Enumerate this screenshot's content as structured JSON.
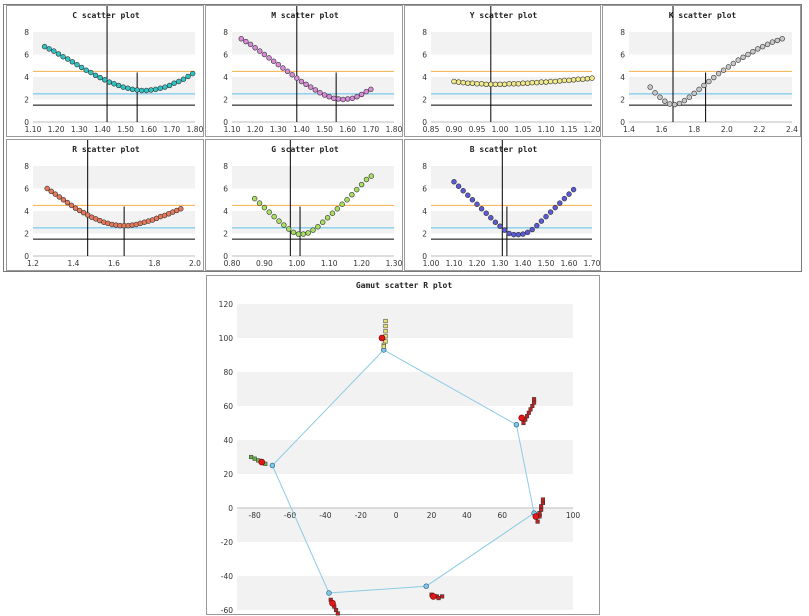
{
  "colors": {
    "orange_line": "#f5b14a",
    "blue_line": "#5bc0ea",
    "black_line": "#000000",
    "band": "#f2f2f2",
    "hull": "#8ecbe6"
  },
  "chart_data": [
    {
      "id": "c",
      "type": "scatter",
      "title": "C scatter plot",
      "xticks": [
        "1.10",
        "1.20",
        "1.30",
        "1.40",
        "1.50",
        "1.60",
        "1.70",
        "1.80"
      ],
      "xlim": [
        1.1,
        1.8
      ],
      "ylim": [
        0,
        8
      ],
      "yticks": [
        "0",
        "2",
        "4",
        "6",
        "8"
      ],
      "hlines": [
        4.5,
        2.5,
        1.5
      ],
      "vlines": [
        1.42,
        1.55
      ],
      "marker": "#2ec4c4",
      "x": [
        1.15,
        1.17,
        1.19,
        1.21,
        1.23,
        1.25,
        1.27,
        1.29,
        1.31,
        1.33,
        1.35,
        1.37,
        1.39,
        1.41,
        1.43,
        1.45,
        1.47,
        1.49,
        1.51,
        1.53,
        1.55,
        1.57,
        1.59,
        1.61,
        1.63,
        1.65,
        1.67,
        1.69,
        1.71,
        1.73,
        1.75,
        1.77,
        1.79
      ],
      "y": [
        6.7,
        6.5,
        6.3,
        6.05,
        5.8,
        5.6,
        5.35,
        5.1,
        4.85,
        4.6,
        4.4,
        4.15,
        3.95,
        3.75,
        3.55,
        3.4,
        3.25,
        3.1,
        3.0,
        2.9,
        2.85,
        2.8,
        2.8,
        2.85,
        2.9,
        3.0,
        3.1,
        3.25,
        3.45,
        3.6,
        3.8,
        4.05,
        4.3
      ]
    },
    {
      "id": "m",
      "type": "scatter",
      "title": "M scatter plot",
      "xticks": [
        "1.10",
        "1.20",
        "1.30",
        "1.40",
        "1.50",
        "1.60",
        "1.70",
        "1.80"
      ],
      "xlim": [
        1.1,
        1.8
      ],
      "ylim": [
        0,
        8
      ],
      "yticks": [
        "0",
        "2",
        "4",
        "6",
        "8"
      ],
      "hlines": [
        4.5,
        2.5,
        1.5
      ],
      "vlines": [
        1.38,
        1.55
      ],
      "marker": "#d98ad9",
      "x": [
        1.14,
        1.16,
        1.18,
        1.2,
        1.22,
        1.24,
        1.26,
        1.28,
        1.3,
        1.32,
        1.34,
        1.36,
        1.38,
        1.4,
        1.42,
        1.44,
        1.46,
        1.48,
        1.5,
        1.52,
        1.54,
        1.56,
        1.58,
        1.6,
        1.62,
        1.64,
        1.66,
        1.68,
        1.7
      ],
      "y": [
        7.4,
        7.15,
        6.9,
        6.6,
        6.3,
        6.0,
        5.7,
        5.4,
        5.1,
        4.8,
        4.5,
        4.2,
        3.9,
        3.6,
        3.35,
        3.1,
        2.85,
        2.6,
        2.4,
        2.25,
        2.1,
        2.05,
        2.0,
        2.05,
        2.1,
        2.25,
        2.45,
        2.7,
        2.9
      ]
    },
    {
      "id": "y",
      "type": "scatter",
      "title": "Y scatter plot",
      "xticks": [
        "0.85",
        "0.90",
        "0.95",
        "1.00",
        "1.05",
        "1.10",
        "1.15",
        "1.20"
      ],
      "xlim": [
        0.85,
        1.2
      ],
      "ylim": [
        0,
        8
      ],
      "yticks": [
        "0",
        "2",
        "4",
        "6",
        "8"
      ],
      "hlines": [
        4.5,
        2.5,
        1.5
      ],
      "vlines": [
        0.98
      ],
      "marker": "#f0ea8c",
      "x": [
        0.9,
        0.91,
        0.92,
        0.93,
        0.94,
        0.95,
        0.96,
        0.97,
        0.98,
        0.99,
        1.0,
        1.01,
        1.02,
        1.03,
        1.04,
        1.05,
        1.06,
        1.07,
        1.08,
        1.09,
        1.1,
        1.11,
        1.12,
        1.13,
        1.14,
        1.15,
        1.16,
        1.17,
        1.18,
        1.19,
        1.2
      ],
      "y": [
        3.6,
        3.55,
        3.5,
        3.45,
        3.45,
        3.4,
        3.4,
        3.35,
        3.35,
        3.35,
        3.35,
        3.35,
        3.4,
        3.4,
        3.4,
        3.45,
        3.45,
        3.5,
        3.5,
        3.55,
        3.55,
        3.6,
        3.6,
        3.65,
        3.7,
        3.7,
        3.75,
        3.8,
        3.8,
        3.85,
        3.9
      ]
    },
    {
      "id": "k",
      "type": "scatter",
      "title": "K scatter plot",
      "xticks": [
        "1.4",
        "1.6",
        "1.8",
        "2.0",
        "2.2",
        "2.4"
      ],
      "xlim": [
        1.4,
        2.4
      ],
      "ylim": [
        0,
        8
      ],
      "yticks": [
        "0",
        "2",
        "4",
        "6",
        "8"
      ],
      "hlines": [
        4.5,
        2.5,
        1.5
      ],
      "vlines": [
        1.67,
        1.87
      ],
      "marker": "#c8c8c8",
      "x": [
        1.53,
        1.56,
        1.59,
        1.62,
        1.65,
        1.68,
        1.71,
        1.74,
        1.77,
        1.8,
        1.83,
        1.86,
        1.89,
        1.92,
        1.95,
        1.98,
        2.01,
        2.04,
        2.07,
        2.1,
        2.13,
        2.16,
        2.19,
        2.22,
        2.25,
        2.28,
        2.31,
        2.34
      ],
      "y": [
        3.1,
        2.6,
        2.2,
        1.85,
        1.6,
        1.55,
        1.65,
        1.9,
        2.2,
        2.55,
        2.9,
        3.25,
        3.6,
        3.95,
        4.3,
        4.6,
        4.9,
        5.2,
        5.5,
        5.75,
        6.0,
        6.25,
        6.5,
        6.7,
        6.9,
        7.1,
        7.25,
        7.4
      ]
    },
    {
      "id": "r",
      "type": "scatter",
      "title": "R scatter plot",
      "xticks": [
        "1.2",
        "1.4",
        "1.6",
        "1.8",
        "2.0"
      ],
      "xlim": [
        1.2,
        2.0
      ],
      "ylim": [
        0,
        8
      ],
      "yticks": [
        "0",
        "2",
        "4",
        "6",
        "8"
      ],
      "hlines": [
        4.5,
        2.5,
        1.5
      ],
      "vlines": [
        1.47,
        1.65
      ],
      "marker": "#e8785a",
      "x": [
        1.27,
        1.29,
        1.31,
        1.33,
        1.35,
        1.37,
        1.39,
        1.41,
        1.43,
        1.45,
        1.47,
        1.49,
        1.51,
        1.53,
        1.55,
        1.57,
        1.59,
        1.61,
        1.63,
        1.65,
        1.67,
        1.69,
        1.71,
        1.73,
        1.75,
        1.77,
        1.79,
        1.81,
        1.83,
        1.85,
        1.87,
        1.89,
        1.91,
        1.93
      ],
      "y": [
        6.0,
        5.75,
        5.5,
        5.25,
        5.0,
        4.75,
        4.5,
        4.25,
        4.05,
        3.85,
        3.65,
        3.45,
        3.3,
        3.15,
        3.0,
        2.9,
        2.8,
        2.75,
        2.7,
        2.7,
        2.7,
        2.75,
        2.8,
        2.9,
        3.0,
        3.1,
        3.2,
        3.35,
        3.5,
        3.6,
        3.75,
        3.9,
        4.05,
        4.2
      ]
    },
    {
      "id": "g",
      "type": "scatter",
      "title": "G scatter plot",
      "xticks": [
        "0.80",
        "0.90",
        "1.00",
        "1.10",
        "1.20",
        "1.30"
      ],
      "xlim": [
        0.8,
        1.3
      ],
      "ylim": [
        0,
        8
      ],
      "yticks": [
        "0",
        "2",
        "4",
        "6",
        "8"
      ],
      "hlines": [
        4.5,
        2.5,
        1.5
      ],
      "vlines": [
        0.98,
        1.01
      ],
      "marker": "#a8e060",
      "x": [
        0.87,
        0.885,
        0.9,
        0.915,
        0.93,
        0.945,
        0.96,
        0.975,
        0.99,
        1.005,
        1.02,
        1.035,
        1.05,
        1.065,
        1.08,
        1.095,
        1.11,
        1.125,
        1.14,
        1.155,
        1.17,
        1.185,
        1.2,
        1.215,
        1.23
      ],
      "y": [
        5.1,
        4.7,
        4.3,
        3.9,
        3.5,
        3.1,
        2.75,
        2.4,
        2.1,
        1.95,
        1.95,
        2.05,
        2.3,
        2.6,
        3.0,
        3.4,
        3.8,
        4.2,
        4.6,
        5.0,
        5.45,
        5.9,
        6.35,
        6.8,
        7.1
      ]
    },
    {
      "id": "b",
      "type": "scatter",
      "title": "B scatter plot",
      "xticks": [
        "1.00",
        "1.10",
        "1.20",
        "1.30",
        "1.40",
        "1.50",
        "1.60",
        "1.70"
      ],
      "xlim": [
        1.0,
        1.7
      ],
      "ylim": [
        0,
        8
      ],
      "yticks": [
        "0",
        "2",
        "4",
        "6",
        "8"
      ],
      "hlines": [
        4.5,
        2.5,
        1.5
      ],
      "vlines": [
        1.31,
        1.33
      ],
      "marker": "#5a5ad8",
      "x": [
        1.1,
        1.12,
        1.14,
        1.16,
        1.18,
        1.2,
        1.22,
        1.24,
        1.26,
        1.28,
        1.3,
        1.32,
        1.34,
        1.36,
        1.38,
        1.4,
        1.42,
        1.44,
        1.46,
        1.48,
        1.5,
        1.52,
        1.54,
        1.56,
        1.58,
        1.6,
        1.62
      ],
      "y": [
        6.6,
        6.2,
        5.8,
        5.4,
        5.0,
        4.6,
        4.2,
        3.8,
        3.4,
        3.0,
        2.65,
        2.3,
        2.0,
        1.9,
        1.9,
        1.95,
        2.1,
        2.35,
        2.7,
        3.1,
        3.5,
        3.9,
        4.3,
        4.7,
        5.1,
        5.5,
        5.9
      ]
    },
    {
      "id": "gamut",
      "type": "scatter",
      "title": "Gamut scatter R plot",
      "xticks": [
        "-80",
        "-60",
        "-40",
        "-20",
        "0",
        "20",
        "40",
        "60",
        "80",
        "100"
      ],
      "xlim": [
        -90,
        100
      ],
      "ylim": [
        -60,
        120
      ],
      "yticks": [
        "-60",
        "-40",
        "-20",
        "0",
        "20",
        "40",
        "60",
        "80",
        "100",
        "120"
      ],
      "hull": {
        "x": [
          -7,
          68,
          78,
          17,
          -38,
          -70,
          -7
        ],
        "y": [
          93,
          49,
          -3,
          -46,
          -50,
          25,
          93
        ]
      },
      "clusters": [
        {
          "color": "#e8e070",
          "x": [
            -6,
            -6,
            -6,
            -6,
            -6,
            -7,
            -7
          ],
          "y": [
            110,
            107,
            104,
            101,
            98,
            96,
            95
          ]
        },
        {
          "color": "#c02020",
          "x": [
            72,
            73,
            74,
            75,
            76,
            77,
            78,
            78
          ],
          "y": [
            50,
            52,
            54,
            56,
            58,
            60,
            62,
            64
          ]
        },
        {
          "color": "#c02020",
          "x": [
            80,
            81,
            81,
            82,
            82,
            83,
            83
          ],
          "y": [
            -8,
            -5,
            -3,
            -1,
            1,
            3,
            5
          ]
        },
        {
          "color": "#c02020",
          "x": [
            20,
            22,
            23,
            24,
            26
          ],
          "y": [
            -51,
            -52,
            -52,
            -53,
            -52
          ]
        },
        {
          "color": "#6ab04c",
          "x": [
            -82,
            -80,
            -78,
            -76,
            -74
          ],
          "y": [
            30,
            29,
            28,
            27,
            26
          ]
        },
        {
          "color": "#c02020",
          "x": [
            -37,
            -36,
            -35,
            -34,
            -33
          ],
          "y": [
            -54,
            -56,
            -58,
            -60,
            -62
          ]
        }
      ],
      "red_points": {
        "x": [
          -8,
          71,
          79,
          21,
          -76,
          -36
        ],
        "y": [
          100,
          53,
          -5,
          -52,
          27,
          -56
        ]
      }
    }
  ]
}
